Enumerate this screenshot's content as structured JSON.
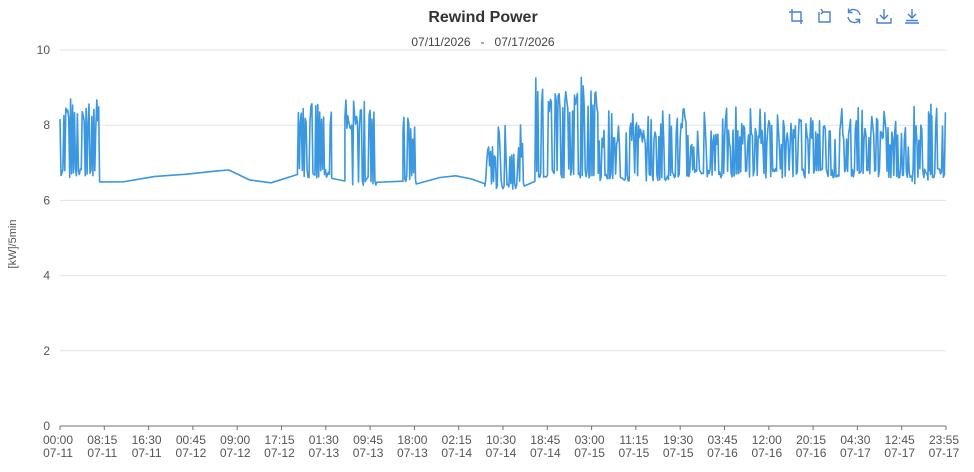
{
  "toolbar": {
    "icons": [
      "zoom-in-icon",
      "zoom-reset-icon",
      "restore-icon",
      "save-as-image-icon",
      "export-icon"
    ],
    "accent_color": "#4a7fd4"
  },
  "chart_data": {
    "type": "line",
    "title": "Rewind Power",
    "subtitle": "07/11/2026   -   07/17/2026",
    "xlabel": "",
    "ylabel": "[kW]/5min",
    "ylim": [
      0,
      10
    ],
    "yticks": [
      0,
      2,
      4,
      6,
      8,
      10
    ],
    "grid": true,
    "line_color": "#3a97e0",
    "x_ticks": [
      {
        "time": "00:00",
        "date": "07-11"
      },
      {
        "time": "08:15",
        "date": "07-11"
      },
      {
        "time": "16:30",
        "date": "07-11"
      },
      {
        "time": "00:45",
        "date": "07-12"
      },
      {
        "time": "09:00",
        "date": "07-12"
      },
      {
        "time": "17:15",
        "date": "07-12"
      },
      {
        "time": "01:30",
        "date": "07-13"
      },
      {
        "time": "09:45",
        "date": "07-13"
      },
      {
        "time": "18:00",
        "date": "07-13"
      },
      {
        "time": "02:15",
        "date": "07-14"
      },
      {
        "time": "10:30",
        "date": "07-14"
      },
      {
        "time": "18:45",
        "date": "07-14"
      },
      {
        "time": "03:00",
        "date": "07-15"
      },
      {
        "time": "11:15",
        "date": "07-15"
      },
      {
        "time": "19:30",
        "date": "07-15"
      },
      {
        "time": "03:45",
        "date": "07-16"
      },
      {
        "time": "12:00",
        "date": "07-16"
      },
      {
        "time": "20:15",
        "date": "07-16"
      },
      {
        "time": "04:30",
        "date": "07-17"
      },
      {
        "time": "12:45",
        "date": "07-17"
      },
      {
        "time": "23:55",
        "date": "07-17"
      }
    ],
    "series": [
      {
        "segments": [
          {
            "start": "07-11 00:00",
            "end": "07-11 07:30",
            "mode": "oscillating",
            "low": 6.6,
            "high": 8.5,
            "peak": 8.7
          },
          {
            "start": "07-11 07:30",
            "end": "07-12 16:00",
            "mode": "smooth",
            "points": [
              [
                "07-11 07:30",
                6.5
              ],
              [
                "07-11 12:00",
                6.5
              ],
              [
                "07-11 18:00",
                6.65
              ],
              [
                "07-12 00:00",
                6.7
              ],
              [
                "07-12 06:00",
                6.78
              ],
              [
                "07-12 08:00",
                6.8
              ],
              [
                "07-12 12:00",
                6.55
              ],
              [
                "07-12 16:00",
                6.45
              ]
            ]
          },
          {
            "start": "07-12 21:00",
            "end": "07-13 03:30",
            "mode": "oscillating",
            "low": 6.6,
            "high": 8.6,
            "peak": 8.8
          },
          {
            "start": "07-13 03:30",
            "end": "07-13 06:00",
            "mode": "smooth",
            "points": [
              [
                "07-13 03:30",
                6.6
              ],
              [
                "07-13 06:00",
                6.5
              ]
            ]
          },
          {
            "start": "07-13 06:00",
            "end": "07-13 12:00",
            "mode": "oscillating",
            "low": 6.4,
            "high": 8.5,
            "peak": 8.75
          },
          {
            "start": "07-13 12:00",
            "end": "07-13 17:00",
            "mode": "smooth",
            "points": [
              [
                "07-13 12:00",
                6.5
              ],
              [
                "07-13 17:00",
                6.5
              ]
            ]
          },
          {
            "start": "07-13 17:00",
            "end": "07-13 19:30",
            "mode": "oscillating",
            "low": 6.5,
            "high": 8.2,
            "peak": 8.3
          },
          {
            "start": "07-13 19:30",
            "end": "07-14 08:30",
            "mode": "smooth",
            "points": [
              [
                "07-13 19:30",
                6.45
              ],
              [
                "07-14 00:00",
                6.6
              ],
              [
                "07-14 03:00",
                6.65
              ],
              [
                "07-14 06:00",
                6.55
              ],
              [
                "07-14 08:30",
                6.45
              ]
            ]
          },
          {
            "start": "07-14 08:30",
            "end": "07-14 16:00",
            "mode": "oscillating",
            "low": 6.3,
            "high": 7.5,
            "peak": 8.1
          },
          {
            "start": "07-14 16:00",
            "end": "07-14 18:00",
            "mode": "smooth",
            "points": [
              [
                "07-14 16:00",
                6.4
              ],
              [
                "07-14 18:00",
                6.5
              ]
            ]
          },
          {
            "start": "07-14 18:00",
            "end": "07-15 06:00",
            "mode": "oscillating",
            "low": 6.6,
            "high": 8.9,
            "peak": 9.5
          },
          {
            "start": "07-15 06:00",
            "end": "07-15 12:00",
            "mode": "oscillating",
            "low": 6.5,
            "high": 8.0,
            "peak": 8.4
          },
          {
            "start": "07-15 12:00",
            "end": "07-15 23:00",
            "mode": "oscillating",
            "low": 6.5,
            "high": 8.1,
            "peak": 8.6
          },
          {
            "start": "07-15 23:00",
            "end": "07-16 07:00",
            "mode": "oscillating",
            "low": 6.6,
            "high": 7.9,
            "peak": 8.5
          },
          {
            "start": "07-16 07:00",
            "end": "07-16 19:00",
            "mode": "oscillating",
            "low": 6.6,
            "high": 8.0,
            "peak": 8.5
          },
          {
            "start": "07-16 19:00",
            "end": "07-17 12:00",
            "mode": "oscillating",
            "low": 6.6,
            "high": 8.2,
            "peak": 8.6
          },
          {
            "start": "07-17 12:00",
            "end": "07-17 21:30",
            "mode": "oscillating",
            "low": 6.6,
            "high": 8.0,
            "peak": 8.5
          },
          {
            "start": "07-17 21:30",
            "end": "07-17 17:30",
            "mode": "skip"
          },
          {
            "start": "07-17 17:30",
            "end": "07-17 18:00",
            "mode": "smooth",
            "points": [
              [
                "07-17 17:30",
                6.5
              ],
              [
                "07-17 18:00",
                6.45
              ]
            ]
          },
          {
            "start": "07-17 18:00",
            "end": "07-17 20:30",
            "mode": "smooth",
            "points": [
              [
                "07-17 18:00",
                6.45
              ],
              [
                "07-17 20:30",
                6.55
              ]
            ]
          },
          {
            "start": "07-17 20:30",
            "end": "07-17 23:55",
            "mode": "oscillating",
            "low": 6.6,
            "high": 8.5,
            "peak": 8.65
          }
        ]
      }
    ]
  }
}
